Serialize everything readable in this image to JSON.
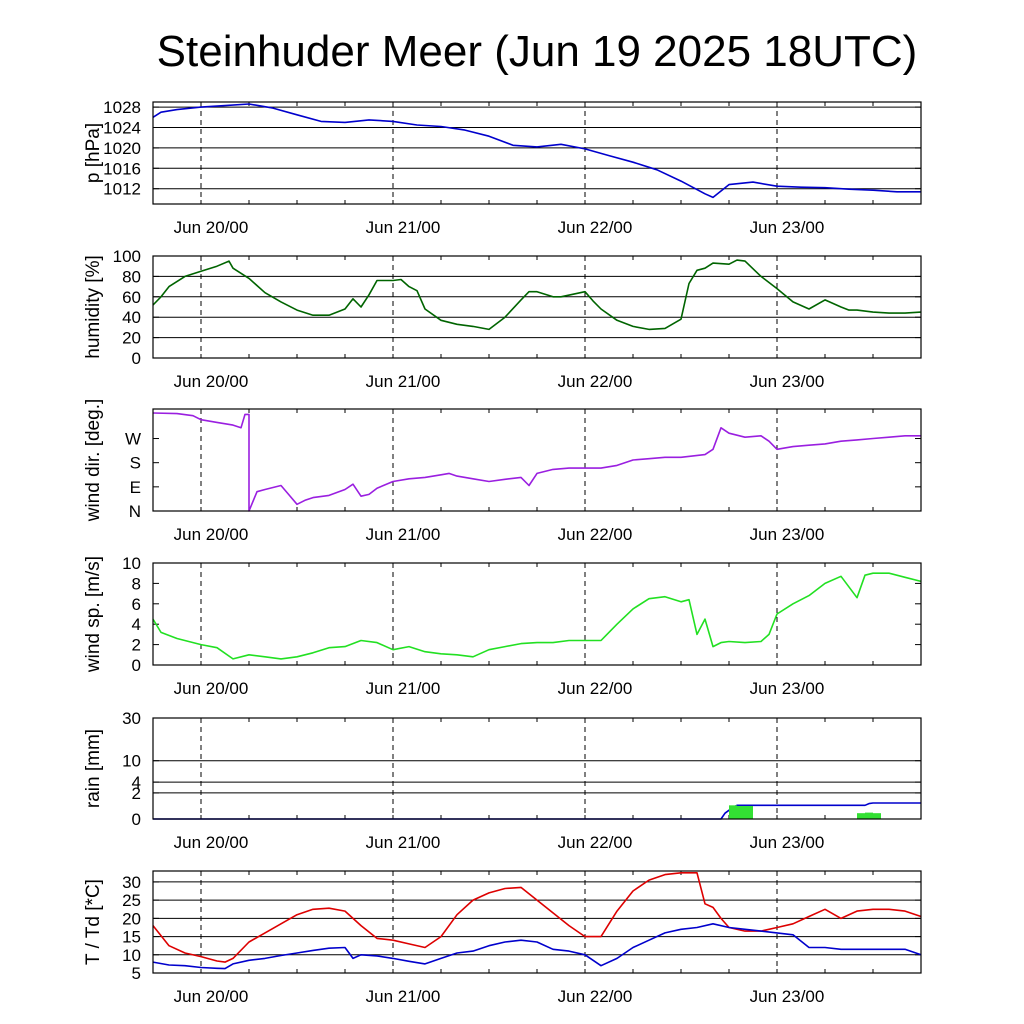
{
  "chart_data": [
    {
      "type": "line",
      "title": "Steinhuder Meer (Jun 19 2025 18UTC)",
      "ylabel": "p [hPa]",
      "ylim": [
        1009,
        1029
      ],
      "yticks": [
        1028,
        1024,
        1020,
        1016,
        1012
      ],
      "grid": true,
      "x_start": "Jun 19 18UTC",
      "x_range_hours": [
        0,
        96
      ],
      "xtick_labels": [
        "Jun 20/00",
        "Jun 21/00",
        "Jun 22/00",
        "Jun 23/00"
      ],
      "xtick_hours": [
        6,
        30,
        54,
        78
      ],
      "series": [
        {
          "color": "#0000cc",
          "x": [
            0,
            1,
            3,
            6,
            9,
            12,
            15,
            18,
            21,
            24,
            27,
            30,
            33,
            36,
            39,
            42,
            45,
            48,
            51,
            54,
            57,
            60,
            63,
            66,
            69,
            70,
            72,
            75,
            78,
            81,
            84,
            87,
            90,
            93,
            96
          ],
          "y": [
            1026,
            1027,
            1027.5,
            1028,
            1028.3,
            1028.6,
            1027.8,
            1026.5,
            1025.2,
            1025,
            1025.5,
            1025.2,
            1024.5,
            1024.2,
            1023.5,
            1022.3,
            1020.5,
            1020.2,
            1020.7,
            1019.8,
            1018.5,
            1017.2,
            1015.7,
            1013.5,
            1011,
            1010.3,
            1012.8,
            1013.3,
            1012.5,
            1012.3,
            1012.2,
            1011.9,
            1011.7,
            1011.4,
            1011.4
          ]
        }
      ]
    },
    {
      "type": "line",
      "ylabel": "humidity [%]",
      "ylim": [
        0,
        100
      ],
      "yticks": [
        100,
        80,
        60,
        40,
        20,
        0
      ],
      "grid": true,
      "x_range_hours": [
        0,
        96
      ],
      "xtick_labels": [
        "Jun 20/00",
        "Jun 21/00",
        "Jun 22/00",
        "Jun 23/00"
      ],
      "xtick_hours": [
        6,
        30,
        54,
        78
      ],
      "series": [
        {
          "color": "#006400",
          "x": [
            0,
            1,
            2,
            4,
            6,
            8,
            9.5,
            10,
            12,
            14,
            16,
            18,
            20,
            22,
            24,
            25,
            26,
            27,
            28,
            30,
            31,
            32,
            33,
            34,
            36,
            38,
            40,
            42,
            44,
            46,
            47,
            48,
            50,
            51,
            54,
            55,
            56,
            58,
            60,
            62,
            64,
            66,
            67,
            68,
            69,
            70,
            72,
            73,
            74,
            76,
            78,
            80,
            82,
            84,
            86,
            87,
            88,
            89,
            90,
            92,
            94,
            96
          ],
          "y": [
            52,
            60,
            70,
            80,
            85,
            90,
            95,
            88,
            78,
            64,
            55,
            47,
            42,
            42,
            48,
            58,
            50,
            62,
            76,
            76,
            77,
            70,
            66,
            48,
            37,
            33,
            31,
            28,
            40,
            57,
            65,
            65,
            60,
            60,
            65,
            56,
            48,
            37,
            31,
            28,
            29,
            38,
            73,
            86,
            88,
            93,
            92,
            96,
            95,
            80,
            68,
            55,
            48,
            57,
            50,
            47,
            47,
            46,
            45,
            44,
            44,
            45
          ]
        }
      ]
    },
    {
      "type": "line",
      "ylabel": "wind dir. [deg.]",
      "ylim": [
        0,
        380
      ],
      "yticks": [
        270,
        180,
        90,
        0
      ],
      "ytick_labels": [
        "W",
        "S",
        "E",
        "N"
      ],
      "grid": false,
      "x_range_hours": [
        0,
        96
      ],
      "xtick_labels": [
        "Jun 20/00",
        "Jun 21/00",
        "Jun 22/00",
        "Jun 23/00"
      ],
      "xtick_hours": [
        6,
        30,
        54,
        78
      ],
      "series": [
        {
          "color": "#9a1fe0",
          "x": [
            0,
            3,
            5,
            6,
            8,
            10,
            11,
            11.5,
            12,
            13,
            14,
            16,
            17,
            18,
            19,
            20,
            22,
            24,
            25,
            26,
            27,
            28,
            30,
            32,
            34,
            36,
            37,
            38,
            40,
            42,
            44,
            46,
            47,
            48,
            50,
            52,
            54,
            56,
            58,
            60,
            62,
            64,
            66,
            69,
            70,
            71,
            72,
            74,
            76,
            77,
            78,
            80,
            82,
            84,
            86,
            88,
            90,
            92,
            94,
            96
          ],
          "y": [
            365,
            363,
            355,
            340,
            330,
            320,
            310,
            360,
            0,
            72,
            80,
            95,
            60,
            25,
            40,
            50,
            58,
            80,
            100,
            55,
            62,
            85,
            110,
            120,
            125,
            135,
            140,
            130,
            120,
            110,
            118,
            125,
            95,
            140,
            155,
            160,
            160,
            160,
            170,
            190,
            195,
            200,
            200,
            210,
            230,
            310,
            290,
            275,
            280,
            260,
            230,
            240,
            245,
            250,
            260,
            265,
            270,
            275,
            280,
            280
          ]
        }
      ]
    },
    {
      "type": "line",
      "ylabel": "wind sp. [m/s]",
      "ylim": [
        0,
        10
      ],
      "yticks": [
        10,
        8,
        6,
        4,
        2,
        0
      ],
      "grid": false,
      "x_range_hours": [
        0,
        96
      ],
      "xtick_labels": [
        "Jun 20/00",
        "Jun 21/00",
        "Jun 22/00",
        "Jun 23/00"
      ],
      "xtick_hours": [
        6,
        30,
        54,
        78
      ],
      "series": [
        {
          "color": "#22e022",
          "x": [
            0,
            1,
            3,
            6,
            8,
            10,
            12,
            14,
            16,
            18,
            20,
            22,
            24,
            26,
            28,
            30,
            32,
            34,
            36,
            38,
            40,
            42,
            44,
            46,
            48,
            50,
            52,
            54,
            56,
            58,
            60,
            62,
            64,
            66,
            67,
            68,
            69,
            70,
            71,
            72,
            74,
            76,
            77,
            78,
            80,
            82,
            84,
            86,
            88,
            89,
            90,
            92,
            94,
            96
          ],
          "y": [
            4.5,
            3.2,
            2.6,
            2.0,
            1.7,
            0.6,
            1.0,
            0.8,
            0.6,
            0.8,
            1.2,
            1.7,
            1.8,
            2.4,
            2.2,
            1.5,
            1.8,
            1.3,
            1.1,
            1.0,
            0.8,
            1.5,
            1.8,
            2.1,
            2.2,
            2.2,
            2.4,
            2.4,
            2.4,
            4.0,
            5.5,
            6.5,
            6.7,
            6.2,
            6.4,
            3.0,
            4.5,
            1.8,
            2.2,
            2.3,
            2.2,
            2.3,
            3.0,
            5.0,
            6.0,
            6.8,
            8.0,
            8.7,
            6.6,
            8.8,
            9.0,
            9.0,
            8.6,
            8.2
          ]
        }
      ]
    },
    {
      "type": "area",
      "ylabel": "rain [mm]",
      "scale": "sqrt",
      "ylim": [
        0,
        30
      ],
      "yticks": [
        30,
        10,
        4,
        2,
        0
      ],
      "grid": true,
      "x_range_hours": [
        0,
        96
      ],
      "xtick_labels": [
        "Jun 20/00",
        "Jun 21/00",
        "Jun 22/00",
        "Jun 23/00"
      ],
      "xtick_hours": [
        6,
        30,
        54,
        78
      ],
      "series": [
        {
          "color": "#0000cc",
          "kind": "accumulated",
          "x": [
            0,
            71,
            71.5,
            72.5,
            73,
            89,
            89.5,
            90,
            96
          ],
          "y": [
            0,
            0,
            0.1,
            0.4,
            0.55,
            0.55,
            0.7,
            0.75,
            0.75
          ]
        },
        {
          "color": "#33e033",
          "kind": "hourly",
          "x": [
            72,
            73,
            74,
            88,
            89,
            90
          ],
          "y": [
            0.55,
            0.5,
            0.5,
            0.1,
            0.12,
            0.1
          ]
        }
      ]
    },
    {
      "type": "line",
      "ylabel": "T / Td [*C]",
      "ylim": [
        5,
        33
      ],
      "yticks": [
        30,
        25,
        20,
        15,
        10,
        5
      ],
      "grid": true,
      "x_range_hours": [
        0,
        96
      ],
      "xtick_labels": [
        "Jun 20/00",
        "Jun 21/00",
        "Jun 22/00",
        "Jun 23/00"
      ],
      "xtick_hours": [
        6,
        30,
        54,
        78
      ],
      "series": [
        {
          "color": "#dd0000",
          "x": [
            0,
            2,
            4,
            6,
            8,
            9,
            10,
            12,
            14,
            16,
            18,
            20,
            22,
            24,
            26,
            28,
            30,
            32,
            34,
            36,
            38,
            40,
            42,
            44,
            46,
            48,
            50,
            52,
            54,
            56,
            58,
            60,
            62,
            64,
            66,
            68,
            69,
            70,
            71,
            72,
            74,
            76,
            78,
            80,
            82,
            84,
            86,
            88,
            90,
            92,
            94,
            96
          ],
          "y": [
            18,
            12.5,
            10.5,
            9.5,
            8.3,
            8,
            9,
            13.5,
            16,
            18.5,
            21,
            22.5,
            22.8,
            22,
            18,
            14.5,
            14,
            13,
            12,
            15,
            21,
            25,
            27,
            28.2,
            28.5,
            25,
            21.5,
            18,
            15,
            15,
            22,
            27.5,
            30.5,
            32,
            32.5,
            32.5,
            24,
            23,
            20,
            17.5,
            16.5,
            16.5,
            17.5,
            18.5,
            20.5,
            22.5,
            20,
            22,
            22.5,
            22.5,
            22,
            20.5
          ]
        },
        {
          "color": "#0000cc",
          "x": [
            0,
            2,
            4,
            6,
            8,
            9,
            10,
            12,
            14,
            16,
            18,
            20,
            22,
            24,
            25,
            26,
            28,
            30,
            32,
            34,
            36,
            38,
            40,
            42,
            44,
            46,
            48,
            50,
            52,
            54,
            56,
            58,
            60,
            62,
            64,
            66,
            68,
            70,
            72,
            74,
            76,
            78,
            80,
            82,
            84,
            86,
            88,
            90,
            92,
            94,
            96
          ],
          "y": [
            8,
            7.2,
            7,
            6.5,
            6.3,
            6.2,
            7.5,
            8.5,
            9,
            9.8,
            10.5,
            11.2,
            11.8,
            12,
            9,
            10,
            9.7,
            9,
            8.2,
            7.5,
            9,
            10.5,
            11,
            12.5,
            13.5,
            14,
            13.5,
            11.5,
            11,
            10,
            7,
            9,
            12,
            14,
            16,
            17,
            17.5,
            18.5,
            17.5,
            17,
            16.5,
            16,
            15.5,
            12,
            12,
            11.5,
            11.5,
            11.5,
            11.5,
            11.5,
            10
          ]
        }
      ]
    }
  ]
}
